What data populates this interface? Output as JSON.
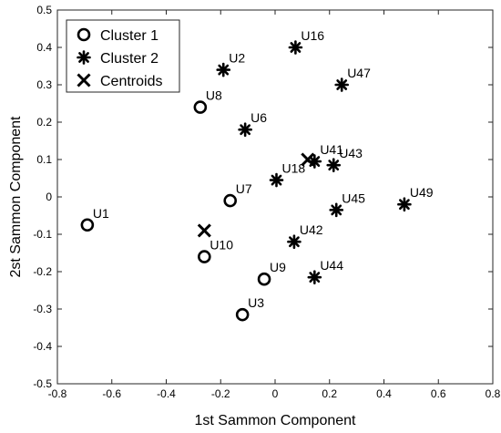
{
  "chart_data": {
    "type": "scatter",
    "title": "",
    "xlabel": "1st Sammon Component",
    "ylabel": "2st Sammon Component",
    "xlim": [
      -0.8,
      0.8
    ],
    "ylim": [
      -0.5,
      0.5
    ],
    "xticks": [
      -0.8,
      -0.6,
      -0.4,
      -0.2,
      0,
      0.2,
      0.4,
      0.6,
      0.8
    ],
    "yticks": [
      -0.5,
      -0.4,
      -0.3,
      -0.2,
      -0.1,
      0,
      0.1,
      0.2,
      0.3,
      0.4,
      0.5
    ],
    "xtick_labels": [
      "-0.8",
      "-0.6",
      "-0.4",
      "-0.2",
      "0",
      "0.2",
      "0.4",
      "0.6",
      "0.8"
    ],
    "ytick_labels": [
      "-0.5",
      "-0.4",
      "-0.3",
      "-0.2",
      "-0.1",
      "0",
      "0.1",
      "0.2",
      "0.3",
      "0.4",
      "0.5"
    ],
    "grid": false,
    "legend_position": "top-left",
    "series": [
      {
        "name": "Cluster 1",
        "marker": "circle",
        "points": [
          {
            "label": "U1",
            "x": -0.69,
            "y": -0.075
          },
          {
            "label": "U8",
            "x": -0.275,
            "y": 0.24
          },
          {
            "label": "U7",
            "x": -0.165,
            "y": -0.01
          },
          {
            "label": "U10",
            "x": -0.26,
            "y": -0.16
          },
          {
            "label": "U9",
            "x": -0.04,
            "y": -0.22
          },
          {
            "label": "U3",
            "x": -0.12,
            "y": -0.315
          }
        ]
      },
      {
        "name": "Cluster 2",
        "marker": "asterisk",
        "points": [
          {
            "label": "U2",
            "x": -0.19,
            "y": 0.34
          },
          {
            "label": "U16",
            "x": 0.075,
            "y": 0.4
          },
          {
            "label": "U47",
            "x": 0.245,
            "y": 0.3
          },
          {
            "label": "U6",
            "x": -0.11,
            "y": 0.18
          },
          {
            "label": "U41",
            "x": 0.145,
            "y": 0.095
          },
          {
            "label": "U43",
            "x": 0.215,
            "y": 0.085
          },
          {
            "label": "U18",
            "x": 0.005,
            "y": 0.045
          },
          {
            "label": "U45",
            "x": 0.225,
            "y": -0.035
          },
          {
            "label": "U49",
            "x": 0.475,
            "y": -0.02
          },
          {
            "label": "U42",
            "x": 0.07,
            "y": -0.12
          },
          {
            "label": "U44",
            "x": 0.145,
            "y": -0.215
          }
        ]
      },
      {
        "name": "Centroids",
        "marker": "x",
        "points": [
          {
            "label": "",
            "x": -0.26,
            "y": -0.09
          },
          {
            "label": "",
            "x": 0.12,
            "y": 0.1
          }
        ]
      }
    ]
  }
}
